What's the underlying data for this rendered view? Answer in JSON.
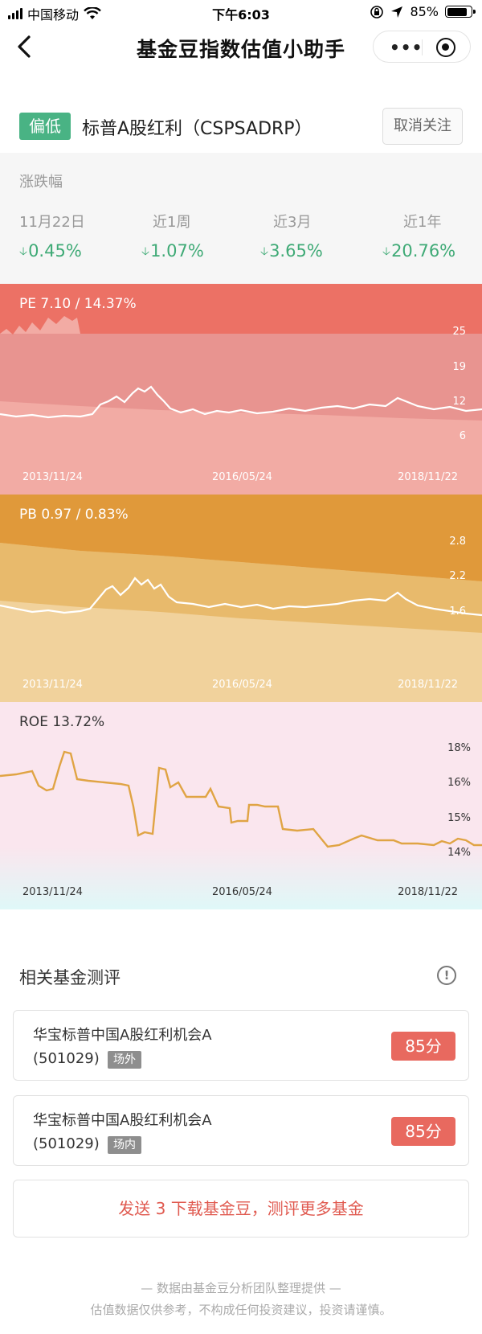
{
  "status_bar": {
    "carrier": "中国移动",
    "time": "下午6:03",
    "battery": "85%",
    "battery_level": 0.85
  },
  "nav": {
    "title": "基金豆指数估值小助手",
    "more_label": "•••"
  },
  "index": {
    "badge": "偏低",
    "name": "标普A股红利（CSPSADRP）",
    "unfollow_label": "取消关注"
  },
  "change": {
    "label": "涨跌幅",
    "periods": [
      {
        "label": "11月22日",
        "value": "0.45%"
      },
      {
        "label": "近1周",
        "value": "1.07%"
      },
      {
        "label": "近3月",
        "value": "3.65%"
      },
      {
        "label": "近1年",
        "value": "20.76%"
      }
    ]
  },
  "charts": {
    "pe": {
      "label": "PE 7.10 / 14.37%",
      "ticks": [
        "25",
        "19",
        "12",
        "6"
      ],
      "colors": {
        "top": "#ec7165",
        "middle": "#e89490",
        "bottom": "#f2aba4"
      }
    },
    "pb": {
      "label": "PB 0.97 / 0.83%",
      "ticks": [
        "2.8",
        "2.2",
        "1.6"
      ],
      "colors": {
        "top": "#e0993a",
        "middle": "#e8ba6c",
        "bottom": "#f1d29c"
      }
    },
    "roe": {
      "label": "ROE 13.72%",
      "ticks": [
        "18%",
        "16%",
        "15%",
        "14%"
      ],
      "colors": {
        "line": "#e0a444",
        "bg_top": "#fae6ee",
        "bg_bottom": "#dff8f8"
      }
    },
    "dates": [
      "2013/11/24",
      "2016/05/24",
      "2018/11/22"
    ]
  },
  "related": {
    "title": "相关基金测评",
    "funds": [
      {
        "name": "华宝标普中国A股红利机会A",
        "code": "(501029)",
        "tag": "场外",
        "score": "85分"
      },
      {
        "name": "华宝标普中国A股红利机会A",
        "code": "(501029)",
        "tag": "场内",
        "score": "85分"
      }
    ]
  },
  "send_button": "发送 3 下载基金豆，测评更多基金",
  "footer": {
    "line1": "— 数据由基金豆分析团队整理提供 —",
    "line2": "估值数据仅供参考，不构成任何投资建议，投资请谨慎。"
  }
}
